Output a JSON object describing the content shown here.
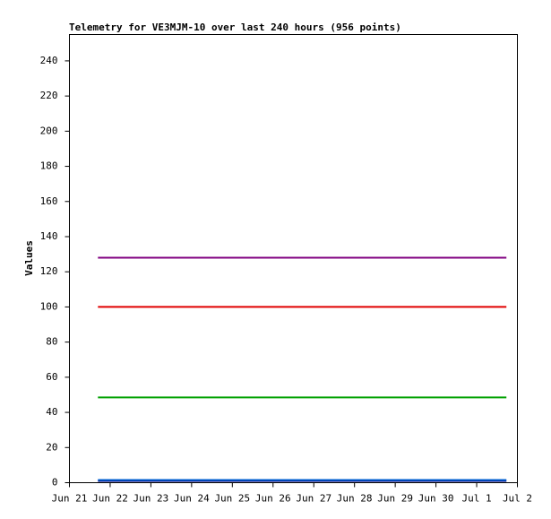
{
  "chart_data": {
    "type": "line",
    "title": "Telemetry for VE3MJM-10 over last 240 hours (956 points)",
    "y_label": "Values",
    "xlim": [
      0,
      11
    ],
    "xticks": [
      {
        "value": 0,
        "label": "Jun 21"
      },
      {
        "value": 1,
        "label": "Jun 22"
      },
      {
        "value": 2,
        "label": "Jun 23"
      },
      {
        "value": 3,
        "label": "Jun 24"
      },
      {
        "value": 4,
        "label": "Jun 25"
      },
      {
        "value": 5,
        "label": "Jun 26"
      },
      {
        "value": 6,
        "label": "Jun 27"
      },
      {
        "value": 7,
        "label": "Jun 28"
      },
      {
        "value": 8,
        "label": "Jun 29"
      },
      {
        "value": 9,
        "label": "Jun 30"
      },
      {
        "value": 10,
        "label": "Jul 1"
      },
      {
        "value": 11,
        "label": "Jul 2"
      }
    ],
    "ylim": [
      0,
      255
    ],
    "yticks": [
      0,
      20,
      40,
      60,
      80,
      100,
      120,
      140,
      160,
      180,
      200,
      220,
      240
    ],
    "series": [
      {
        "color": "#800080",
        "x": [
          0.7,
          10.73
        ],
        "values": [
          128,
          128
        ]
      },
      {
        "color": "#e00000",
        "x": [
          0.7,
          10.73
        ],
        "values": [
          100,
          100
        ]
      },
      {
        "color": "#00a000",
        "x": [
          0.7,
          10.73
        ],
        "values": [
          48.5,
          48.5
        ]
      },
      {
        "color": "#000080",
        "x": [
          0.7,
          10.73
        ],
        "values": [
          1,
          1
        ]
      },
      {
        "color": "#0060d0",
        "x": [
          0.7,
          10.73
        ],
        "values": [
          1.5,
          1.5
        ]
      }
    ]
  }
}
